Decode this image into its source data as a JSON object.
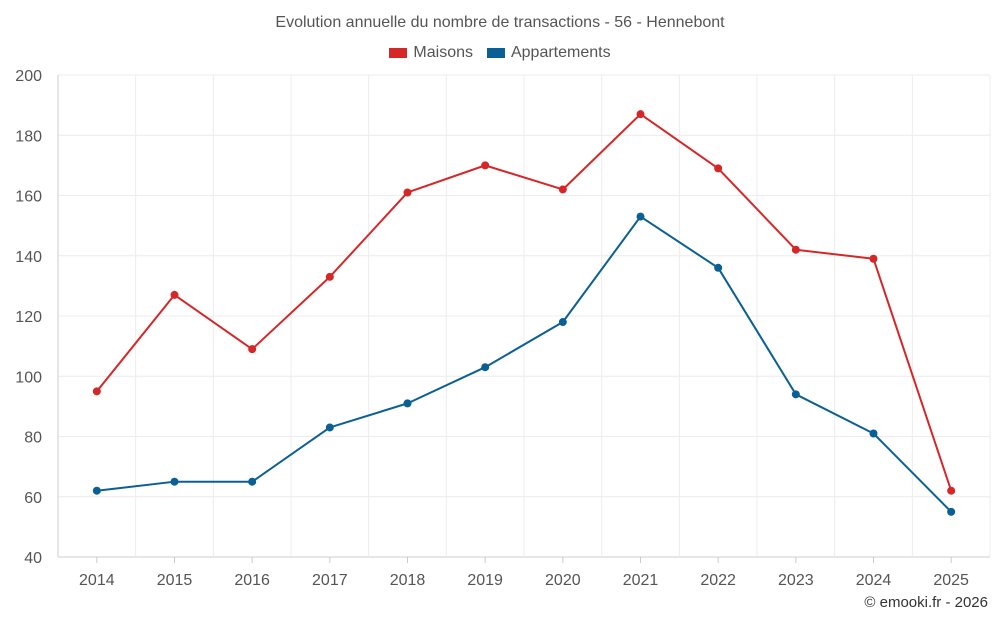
{
  "chart_data": {
    "type": "line",
    "title": "Evolution annuelle du nombre de transactions - 56 - Hennebont",
    "categories": [
      "2014",
      "2015",
      "2016",
      "2017",
      "2018",
      "2019",
      "2020",
      "2021",
      "2022",
      "2023",
      "2024",
      "2025"
    ],
    "series": [
      {
        "name": "Maisons",
        "color": "#d62728",
        "values": [
          95,
          127,
          109,
          133,
          161,
          170,
          162,
          187,
          169,
          142,
          139,
          62
        ]
      },
      {
        "name": "Appartements",
        "color": "#0a5f94",
        "values": [
          62,
          65,
          65,
          83,
          91,
          103,
          118,
          153,
          136,
          94,
          81,
          55
        ]
      }
    ],
    "ylim": [
      40,
      200
    ],
    "yticks": [
      "40",
      "60",
      "80",
      "100",
      "120",
      "140",
      "160",
      "180",
      "200"
    ],
    "xlabel": "",
    "ylabel": "",
    "grid": true,
    "legend_position": "top-center"
  },
  "credit": "© emooki.fr - 2026"
}
